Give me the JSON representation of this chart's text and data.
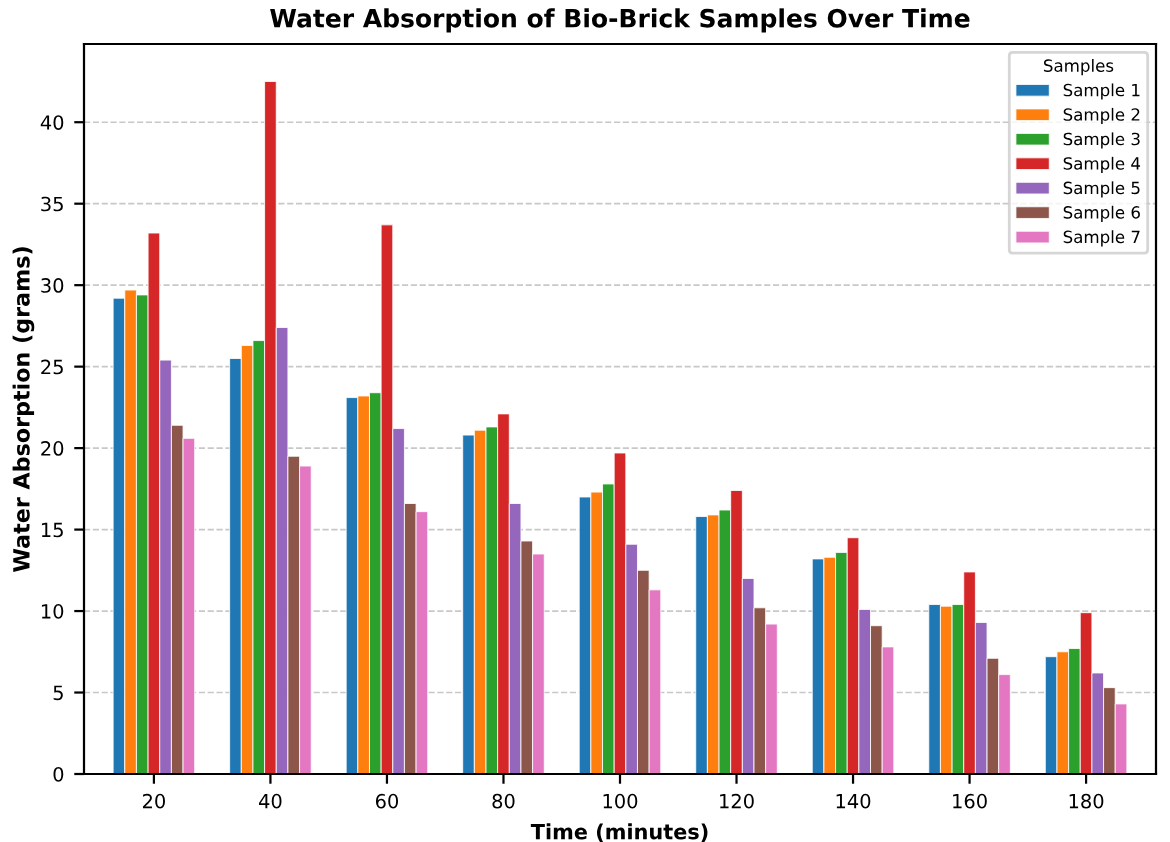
{
  "chart_data": {
    "type": "bar",
    "title": "Water Absorption of Bio-Brick Samples Over Time",
    "xlabel": "Time (minutes)",
    "ylabel": "Water Absorption (grams)",
    "legend_title": "Samples",
    "legend": "top right",
    "grid": "y",
    "categories": [
      "20",
      "40",
      "60",
      "80",
      "100",
      "120",
      "140",
      "160",
      "180"
    ],
    "ylim": [
      0,
      44.8
    ],
    "yticks": [
      0,
      5,
      10,
      15,
      20,
      25,
      30,
      35,
      40
    ],
    "series": [
      {
        "name": "Sample 1",
        "color": "#1f77b4",
        "values": [
          29.2,
          25.5,
          23.1,
          20.8,
          17.0,
          15.8,
          13.2,
          10.4,
          7.2
        ]
      },
      {
        "name": "Sample 2",
        "color": "#ff7f0e",
        "values": [
          29.7,
          26.3,
          23.2,
          21.1,
          17.3,
          15.9,
          13.3,
          10.3,
          7.5
        ]
      },
      {
        "name": "Sample 3",
        "color": "#2ca02c",
        "values": [
          29.4,
          26.6,
          23.4,
          21.3,
          17.8,
          16.2,
          13.6,
          10.4,
          7.7
        ]
      },
      {
        "name": "Sample 4",
        "color": "#d62728",
        "values": [
          33.2,
          42.5,
          33.7,
          22.1,
          19.7,
          17.4,
          14.5,
          12.4,
          9.9
        ]
      },
      {
        "name": "Sample 5",
        "color": "#9467bd",
        "values": [
          25.4,
          27.4,
          21.2,
          16.6,
          14.1,
          12.0,
          10.1,
          9.3,
          6.2
        ]
      },
      {
        "name": "Sample 6",
        "color": "#8c564b",
        "values": [
          21.4,
          19.5,
          16.6,
          14.3,
          12.5,
          10.2,
          9.1,
          7.1,
          5.3
        ]
      },
      {
        "name": "Sample 7",
        "color": "#e377c2",
        "values": [
          20.6,
          18.9,
          16.1,
          13.5,
          11.3,
          9.2,
          7.8,
          6.1,
          4.3
        ]
      }
    ]
  }
}
